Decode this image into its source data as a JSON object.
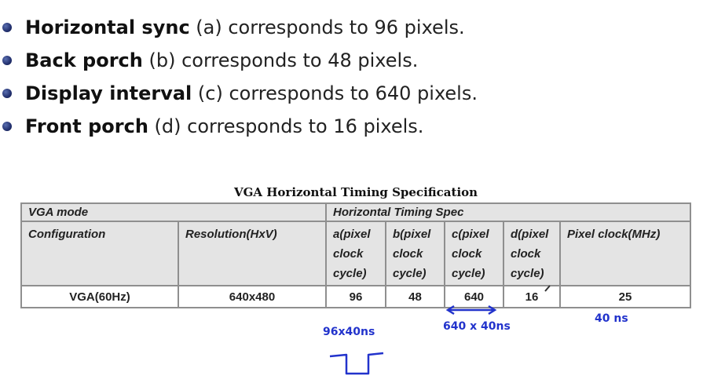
{
  "bullets": [
    {
      "term": "Horizontal sync",
      "rest": " (a) corresponds to 96 pixels."
    },
    {
      "term": "Back porch",
      "rest": " (b) corresponds to 48 pixels."
    },
    {
      "term": "Display interval",
      "rest": " (c) corresponds to 640 pixels."
    },
    {
      "term": "Front porch",
      "rest": " (d) corresponds to 16 pixels."
    }
  ],
  "table": {
    "title": "VGA Horizontal Timing Specification",
    "group_headers": {
      "vga_mode": "VGA mode",
      "timing_spec": "Horizontal Timing Spec"
    },
    "columns": {
      "configuration": "Configuration",
      "resolution": "Resolution(HxV)",
      "a": [
        "a(pixel",
        "clock",
        "cycle)"
      ],
      "b": [
        "b(pixel",
        "clock",
        "cycle)"
      ],
      "c": [
        "c(pixel",
        "clock",
        "cycle)"
      ],
      "d": [
        "d(pixel",
        "clock",
        "cycle)"
      ],
      "pixel_clock": "Pixel clock(MHz)"
    },
    "row": {
      "configuration": "VGA(60Hz)",
      "resolution": "640x480",
      "a": "96",
      "b": "48",
      "c": "640",
      "d": "16",
      "pixel_clock": "25"
    }
  },
  "annotations": {
    "note_96": "96x40ns",
    "note_640": "640 x 40ns",
    "note_40": "40 ns"
  },
  "colors": {
    "bullet": "#22306e",
    "header_bg": "#e4e4e4",
    "ink": "#2233cc"
  }
}
